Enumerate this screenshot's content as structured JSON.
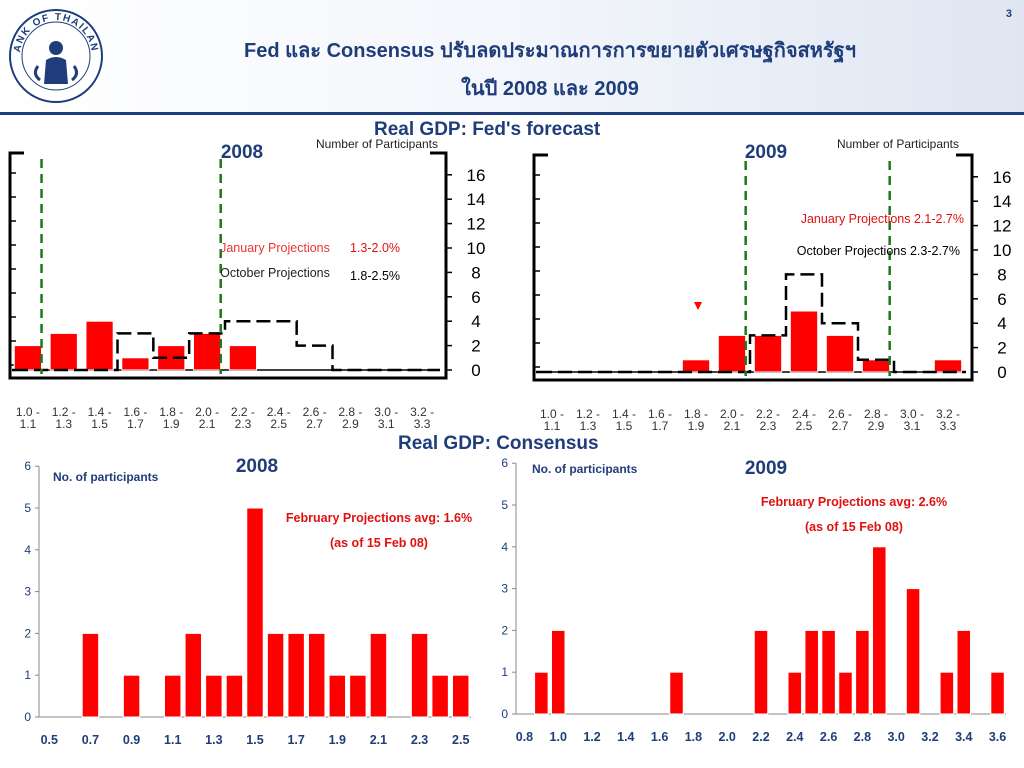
{
  "header": {
    "title_line1": "Fed และ Consensus ปรับลดประมาณการการขยายตัวเศรษฐกิจสหรัฐฯ",
    "title_line2": "ในปี 2008 และ 2009",
    "page_number": "3",
    "logo_text": "BANK OF THAILAND"
  },
  "sections": {
    "fed": "Real GDP: Fed's forecast",
    "consensus": "Real GDP: Consensus"
  },
  "colors": {
    "bar": "#ff0000",
    "title": "#1f3d7a",
    "guide": "#1a7a1a",
    "january": "#e01010"
  },
  "chart_data": [
    {
      "type": "bar",
      "title": "2008",
      "ylabel": "Number of Participants",
      "categories": [
        "1.0 - 1.1",
        "1.2 - 1.3",
        "1.4 - 1.5",
        "1.6 - 1.7",
        "1.8 - 1.9",
        "2.0 - 2.1",
        "2.2 - 2.3",
        "2.4 - 2.5",
        "2.6 - 2.7",
        "2.8 - 2.9",
        "3.0 - 3.1",
        "3.2 - 3.3"
      ],
      "yticks": [
        0,
        2,
        4,
        6,
        8,
        10,
        12,
        14,
        16
      ],
      "ylim": [
        0,
        17
      ],
      "series": [
        {
          "name": "January Projections",
          "range": "1.3-2.0%",
          "style": "filled",
          "values": [
            2,
            3,
            4,
            1,
            2,
            3,
            2,
            0,
            0,
            0,
            0,
            0
          ]
        },
        {
          "name": "October Projections",
          "range": "1.8-2.5%",
          "style": "dashed outline",
          "values": [
            0,
            0,
            0,
            3,
            1,
            3,
            4,
            4,
            2,
            0,
            0,
            0
          ]
        }
      ],
      "guide_lines_at_category": [
        0,
        5
      ],
      "grid": false,
      "legend_position": "center"
    },
    {
      "type": "bar",
      "title": "2009",
      "ylabel": "Number of Participants",
      "categories": [
        "1.0 - 1.1",
        "1.2 - 1.3",
        "1.4 - 1.5",
        "1.6 - 1.7",
        "1.8 - 1.9",
        "2.0 - 2.1",
        "2.2 - 2.3",
        "2.4 - 2.5",
        "2.6 - 2.7",
        "2.8 - 2.9",
        "3.0 - 3.1",
        "3.2 - 3.3"
      ],
      "yticks": [
        0,
        2,
        4,
        6,
        8,
        10,
        12,
        14,
        16
      ],
      "ylim": [
        0,
        17
      ],
      "series": [
        {
          "name": "January Projections",
          "range": "2.1-2.7%",
          "style": "filled",
          "values": [
            0,
            0,
            0,
            0,
            1,
            3,
            3,
            5,
            3,
            1,
            0,
            1
          ]
        },
        {
          "name": "October Projections",
          "range": "2.3-2.7%",
          "style": "dashed outline",
          "values": [
            0,
            0,
            0,
            0,
            0,
            0,
            3,
            8,
            4,
            1,
            0,
            0
          ]
        }
      ],
      "guide_lines_at_category": [
        5,
        9
      ],
      "grid": false,
      "legend_position": "top-right"
    },
    {
      "type": "bar",
      "title": "2008",
      "ylabel": "No. of participants",
      "annotation": [
        "February Projections avg: 1.6%",
        "(as of 15 Feb 08)"
      ],
      "x": [
        0.5,
        0.6,
        0.7,
        0.8,
        0.9,
        1.0,
        1.1,
        1.2,
        1.3,
        1.4,
        1.5,
        1.6,
        1.7,
        1.8,
        1.9,
        2.0,
        2.1,
        2.2,
        2.3,
        2.4,
        2.5
      ],
      "xticks": [
        "0.5",
        "0.7",
        "0.9",
        "1.1",
        "1.3",
        "1.5",
        "1.7",
        "1.9",
        "2.1",
        "2.3",
        "2.5"
      ],
      "values": [
        0,
        0,
        2,
        0,
        1,
        0,
        1,
        2,
        1,
        1,
        5,
        2,
        2,
        2,
        1,
        1,
        2,
        0,
        2,
        1,
        1
      ],
      "yticks": [
        0,
        1,
        2,
        3,
        4,
        5,
        6
      ],
      "ylim": [
        0,
        6
      ],
      "grid": false
    },
    {
      "type": "bar",
      "title": "2009",
      "ylabel": "No. of participants",
      "annotation": [
        "February Projections avg: 2.6%",
        "(as of 15 Feb 08)"
      ],
      "x": [
        0.8,
        0.9,
        1.0,
        1.1,
        1.2,
        1.3,
        1.4,
        1.5,
        1.6,
        1.7,
        1.8,
        1.9,
        2.0,
        2.1,
        2.2,
        2.3,
        2.4,
        2.5,
        2.6,
        2.7,
        2.8,
        2.9,
        3.0,
        3.1,
        3.2,
        3.3,
        3.4,
        3.5,
        3.6
      ],
      "xticks": [
        "0.8",
        "1.0",
        "1.2",
        "1.4",
        "1.6",
        "1.8",
        "2.0",
        "2.2",
        "2.4",
        "2.6",
        "2.8",
        "3.0",
        "3.2",
        "3.4",
        "3.6"
      ],
      "values": [
        0,
        1,
        2,
        0,
        0,
        0,
        0,
        0,
        0,
        1,
        0,
        0,
        0,
        0,
        2,
        0,
        1,
        2,
        2,
        1,
        2,
        4,
        0,
        3,
        0,
        1,
        2,
        0,
        1
      ],
      "yticks": [
        0,
        1,
        2,
        3,
        4,
        5,
        6
      ],
      "ylim": [
        0,
        6
      ],
      "grid": false
    }
  ]
}
